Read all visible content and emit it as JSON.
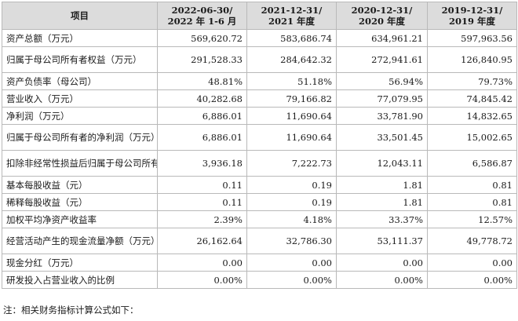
{
  "table": {
    "headers": [
      {
        "line1": "项目",
        "line2": ""
      },
      {
        "line1": "2022-06-30/",
        "line2": "2022 年 1-6 月"
      },
      {
        "line1": "2021-12-31/",
        "line2": "2021 年度"
      },
      {
        "line1": "2020-12-31/",
        "line2": "2020 年度"
      },
      {
        "line1": "2019-12-31/",
        "line2": "2019 年度"
      }
    ],
    "rows": [
      {
        "label": "资产总额（万元）",
        "values": [
          "569,620.72",
          "583,686.74",
          "634,961.21",
          "597,963.56"
        ]
      },
      {
        "label": "归属于母公司所有者权益（万元）",
        "values": [
          "291,528.33",
          "284,642.32",
          "272,941.61",
          "126,840.95"
        ]
      },
      {
        "label": "资产负债率（母公司）",
        "values": [
          "48.81%",
          "51.18%",
          "56.94%",
          "79.73%"
        ]
      },
      {
        "label": "营业收入（万元）",
        "values": [
          "40,282.68",
          "79,166.82",
          "77,079.95",
          "74,845.42"
        ]
      },
      {
        "label": "净利润（万元）",
        "values": [
          "6,886.01",
          "11,690.64",
          "33,781.90",
          "14,832.65"
        ]
      },
      {
        "label": "归属于母公司所有者的净利润（万元）",
        "values": [
          "6,886.01",
          "11,690.64",
          "33,501.45",
          "15,002.65"
        ]
      },
      {
        "label": "扣除非经常性损益后归属于母公司所有者的净利润（万元）",
        "values": [
          "3,936.18",
          "7,222.73",
          "12,043.11",
          "6,586.87"
        ]
      },
      {
        "label": "基本每股收益（元）",
        "values": [
          "0.11",
          "0.19",
          "1.81",
          "0.81"
        ]
      },
      {
        "label": "稀释每股收益（元）",
        "values": [
          "0.11",
          "0.19",
          "1.81",
          "0.81"
        ]
      },
      {
        "label": "加权平均净资产收益率",
        "values": [
          "2.39%",
          "4.18%",
          "33.37%",
          "12.57%"
        ]
      },
      {
        "label": "经营活动产生的现金流量净额（万元）",
        "values": [
          "26,162.64",
          "32,786.30",
          "53,111.37",
          "49,778.72"
        ]
      },
      {
        "label": "现金分红（万元）",
        "values": [
          "0.00",
          "0.00",
          "0.00",
          "0.00"
        ]
      },
      {
        "label": "研发投入占营业收入的比例",
        "values": [
          "0.00%",
          "0.00%",
          "0.00%",
          "0.00%"
        ]
      }
    ]
  },
  "note": "注：相关财务指标计算公式如下："
}
